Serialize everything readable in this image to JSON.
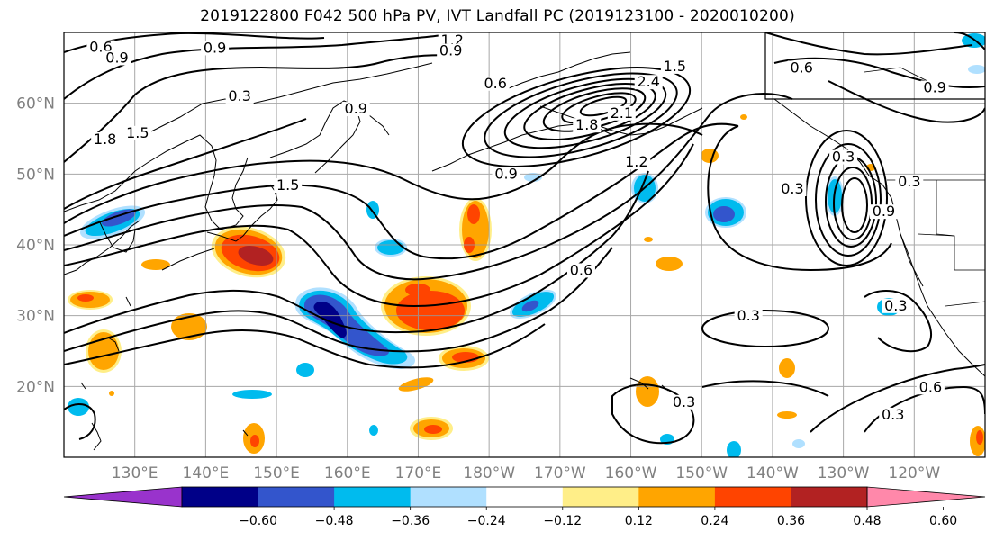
{
  "title": "2019122800 F042 500 hPa PV, IVT Landfall PC (2019123100 - 2020010200)",
  "map": {
    "projection": "PlateCarree",
    "lon_range": [
      120,
      250
    ],
    "lat_range": [
      10,
      70
    ],
    "gridlines": true,
    "lat_ticks": [
      {
        "value": 60,
        "label": "60°N"
      },
      {
        "value": 50,
        "label": "50°N"
      },
      {
        "value": 40,
        "label": "40°N"
      },
      {
        "value": 30,
        "label": "30°N"
      },
      {
        "value": 20,
        "label": "20°N"
      }
    ],
    "lon_ticks": [
      {
        "value": 130,
        "label": "130°E"
      },
      {
        "value": 140,
        "label": "140°E"
      },
      {
        "value": 150,
        "label": "150°E"
      },
      {
        "value": 160,
        "label": "160°E"
      },
      {
        "value": 170,
        "label": "170°E"
      },
      {
        "value": 180,
        "label": "180°W"
      },
      {
        "value": 190,
        "label": "170°W"
      },
      {
        "value": 200,
        "label": "160°W"
      },
      {
        "value": 210,
        "label": "150°W"
      },
      {
        "value": 220,
        "label": "140°W"
      },
      {
        "value": 230,
        "label": "130°W"
      },
      {
        "value": 240,
        "label": "120°W"
      }
    ],
    "contour_labels": [
      {
        "text": "0.6",
        "lon": 125.2,
        "lat": 67.5
      },
      {
        "text": "0.9",
        "lon": 127.5,
        "lat": 66.0
      },
      {
        "text": "0.9",
        "lon": 141.3,
        "lat": 67.4
      },
      {
        "text": "0.3",
        "lon": 144.8,
        "lat": 60.6
      },
      {
        "text": "1.8",
        "lon": 125.8,
        "lat": 54.5
      },
      {
        "text": "1.5",
        "lon": 130.4,
        "lat": 55.4
      },
      {
        "text": "1.5",
        "lon": 151.6,
        "lat": 48.0
      },
      {
        "text": "0.9",
        "lon": 161.2,
        "lat": 58.8
      },
      {
        "text": "1.2",
        "lon": 174.8,
        "lat": 68.5
      },
      {
        "text": "0.9",
        "lon": 174.6,
        "lat": 67.0
      },
      {
        "text": "0.6",
        "lon": 180.9,
        "lat": 62.4
      },
      {
        "text": "1.5",
        "lon": 206.2,
        "lat": 64.8
      },
      {
        "text": "2.4",
        "lon": 202.5,
        "lat": 62.6
      },
      {
        "text": "2.1",
        "lon": 198.7,
        "lat": 58.2
      },
      {
        "text": "1.8",
        "lon": 193.8,
        "lat": 56.5
      },
      {
        "text": "1.2",
        "lon": 200.8,
        "lat": 51.3
      },
      {
        "text": "0.9",
        "lon": 182.4,
        "lat": 49.6
      },
      {
        "text": "0.6",
        "lon": 193.0,
        "lat": 36.0
      },
      {
        "text": "0.3",
        "lon": 216.6,
        "lat": 29.6
      },
      {
        "text": "0.3",
        "lon": 230.0,
        "lat": 52.0
      },
      {
        "text": "0.3",
        "lon": 222.8,
        "lat": 47.5
      },
      {
        "text": "0.3",
        "lon": 239.3,
        "lat": 48.5
      },
      {
        "text": "0.9",
        "lon": 235.7,
        "lat": 44.3
      },
      {
        "text": "0.3",
        "lon": 237.4,
        "lat": 31.0
      },
      {
        "text": "0.6",
        "lon": 224.1,
        "lat": 64.6
      },
      {
        "text": "0.9",
        "lon": 242.9,
        "lat": 61.8
      },
      {
        "text": "0.3",
        "lon": 207.5,
        "lat": 17.4
      },
      {
        "text": "0.6",
        "lon": 242.3,
        "lat": 19.5
      },
      {
        "text": "0.3",
        "lon": 237.0,
        "lat": 15.6
      }
    ]
  },
  "colorbar": {
    "colors": [
      "#9933cc",
      "#000088",
      "#3355cc",
      "#00bbee",
      "#b0e0ff",
      "#ffffff",
      "#ffee88",
      "#ffa500",
      "#ff4400",
      "#b22222",
      "#ff88aa"
    ],
    "ticks": [
      "−0.60",
      "−0.48",
      "−0.36",
      "−0.24",
      "−0.12",
      "0.12",
      "0.24",
      "0.36",
      "0.48",
      "0.60"
    ]
  }
}
